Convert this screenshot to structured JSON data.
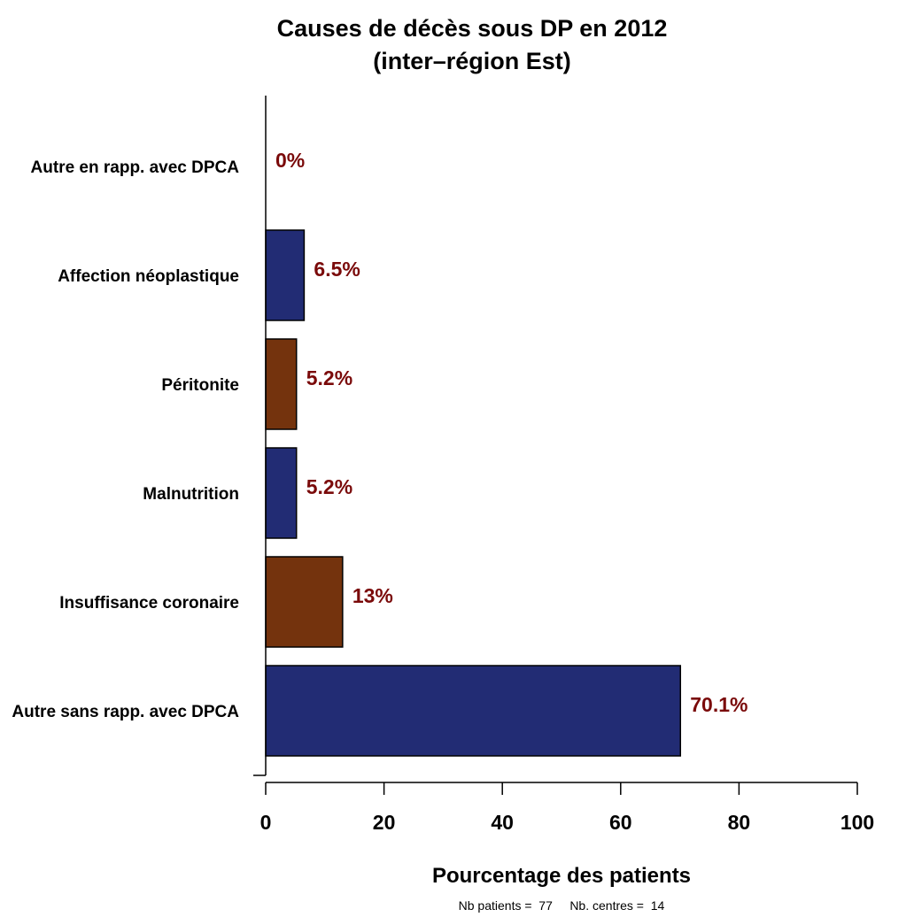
{
  "chart_data": {
    "type": "bar",
    "orientation": "horizontal",
    "title": "Causes de décès sous DP en 2012",
    "subtitle": "(inter–région Est)",
    "xlabel": "Pourcentage des patients",
    "ylabel": "",
    "xlim": [
      0,
      100
    ],
    "xticks": [
      0,
      20,
      40,
      60,
      80,
      100
    ],
    "grid": false,
    "categories": [
      "Autre en rapp. avec DPCA",
      "Affection néoplastique",
      "Péritonite",
      "Malnutrition",
      "Insuffisance coronaire",
      "Autre sans rapp. avec DPCA"
    ],
    "values": [
      0,
      6.5,
      5.2,
      5.2,
      13,
      70.1
    ],
    "data_labels": [
      "0%",
      "6.5%",
      "5.2%",
      "5.2%",
      "13%",
      "70.1%"
    ],
    "bar_colors": [
      "#222c74",
      "#222c74",
      "#74330d",
      "#222c74",
      "#74330d",
      "#222c74"
    ],
    "label_color": "#7a0a0a",
    "footnote": "Nb patients =  77     Nb. centres =  14"
  }
}
